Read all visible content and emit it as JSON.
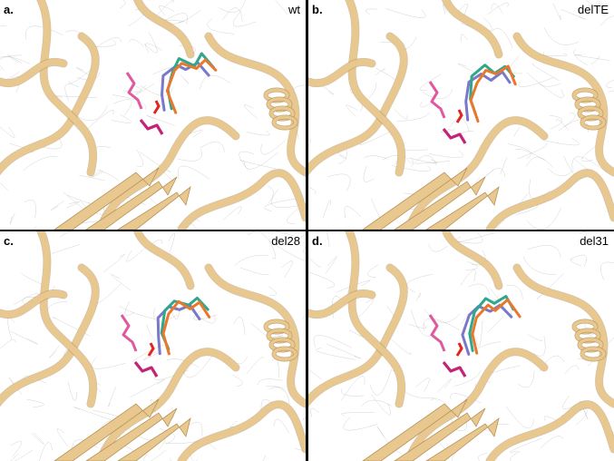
{
  "panels": [
    {
      "letter": "a.",
      "name": "wt"
    },
    {
      "letter": "b.",
      "name": "delTE"
    },
    {
      "letter": "c.",
      "name": "del28"
    },
    {
      "letter": "d.",
      "name": "del31"
    }
  ],
  "colors": {
    "ribbon": "#e8c88f",
    "ribbon_dark": "#b89358",
    "mesh": "#9a9a9a",
    "ligand_pink": "#e0589e",
    "ligand_magenta": "#c2247a",
    "ligand_red": "#e2261e",
    "ligand_orange": "#e8792c",
    "ligand_teal": "#2fa78d",
    "ligand_purple": "#7a78c8"
  }
}
